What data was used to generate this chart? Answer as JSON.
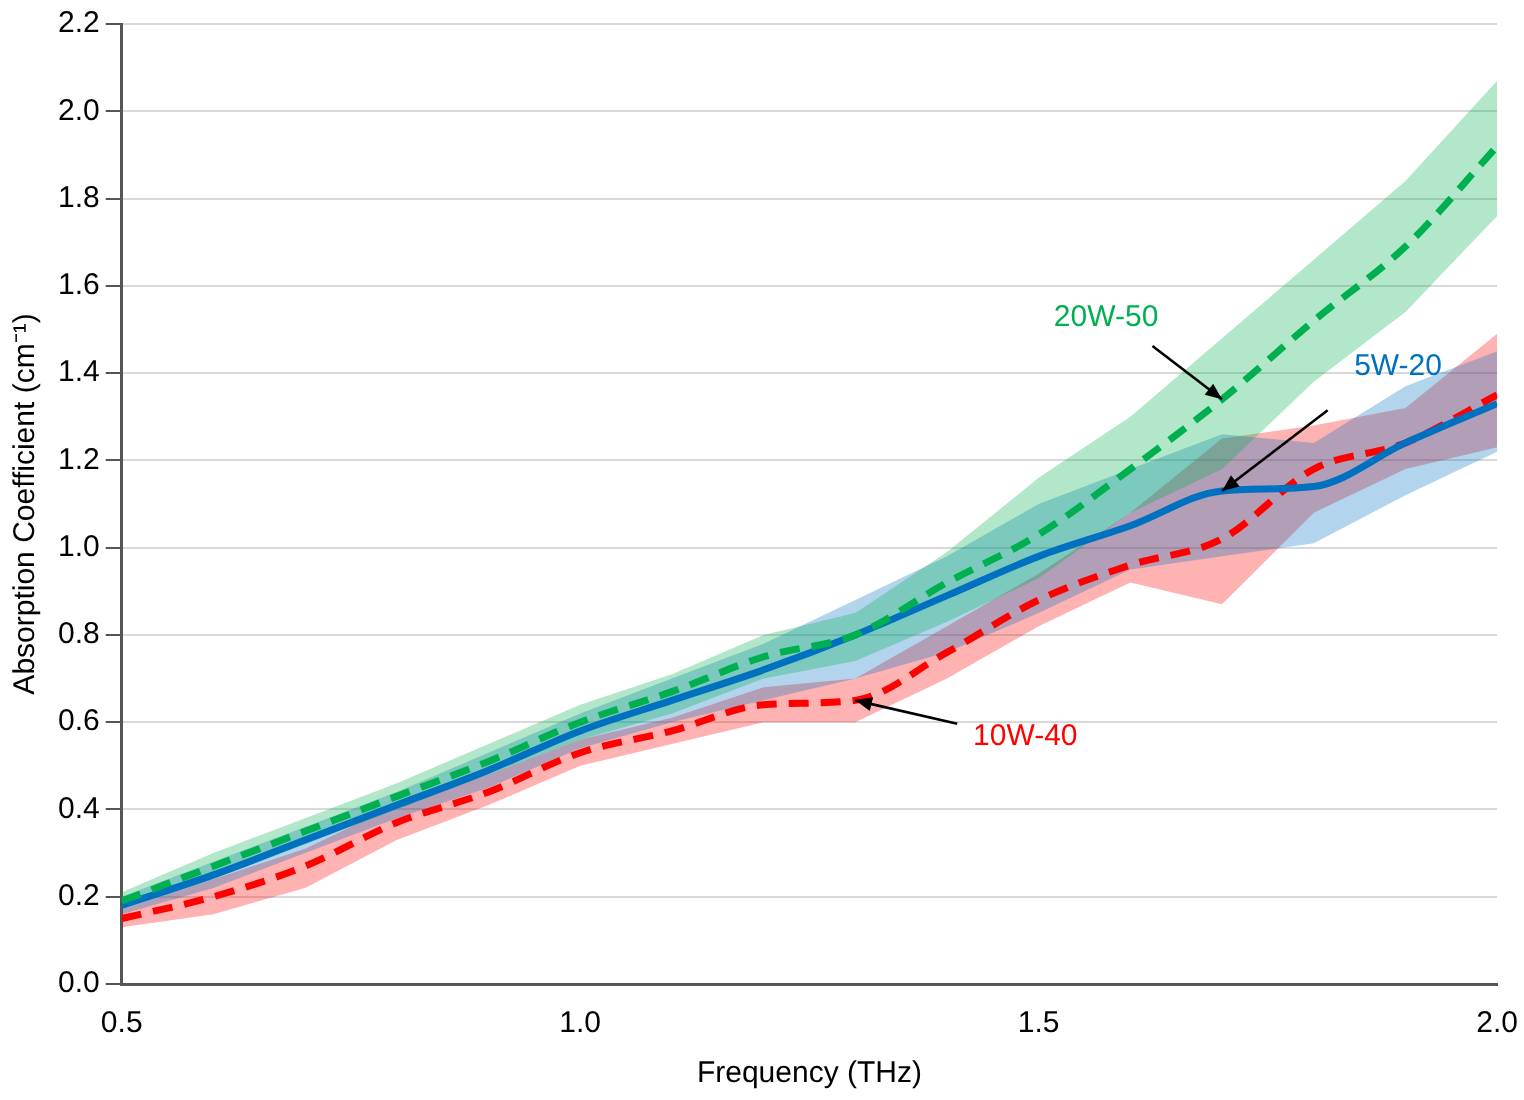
{
  "chart_data": {
    "type": "line",
    "xlabel": "Frequency (THz)",
    "ylabel": "Absorption Coefficient (cm⁻¹)",
    "x": [
      0.5,
      0.6,
      0.7,
      0.8,
      0.9,
      1.0,
      1.1,
      1.2,
      1.3,
      1.4,
      1.5,
      1.6,
      1.7,
      1.8,
      1.9,
      2.0
    ],
    "series": [
      {
        "name": "20W-50",
        "color": "#00b050",
        "line_style": "dashed",
        "values": [
          0.19,
          0.27,
          0.35,
          0.43,
          0.51,
          0.6,
          0.67,
          0.75,
          0.8,
          0.92,
          1.03,
          1.18,
          1.34,
          1.52,
          1.69,
          1.92
        ],
        "lower": [
          0.17,
          0.24,
          0.32,
          0.4,
          0.48,
          0.56,
          0.62,
          0.7,
          0.74,
          0.83,
          0.93,
          1.08,
          1.18,
          1.38,
          1.54,
          1.76
        ],
        "upper": [
          0.21,
          0.3,
          0.38,
          0.46,
          0.55,
          0.64,
          0.71,
          0.8,
          0.85,
          0.99,
          1.16,
          1.3,
          1.48,
          1.66,
          1.84,
          2.07
        ]
      },
      {
        "name": "5W-20",
        "color": "#0070c0",
        "line_style": "solid",
        "values": [
          0.18,
          0.25,
          0.33,
          0.41,
          0.49,
          0.58,
          0.65,
          0.72,
          0.8,
          0.89,
          0.98,
          1.05,
          1.13,
          1.14,
          1.24,
          1.33
        ],
        "lower": [
          0.16,
          0.22,
          0.3,
          0.38,
          0.45,
          0.54,
          0.6,
          0.65,
          0.7,
          0.76,
          0.85,
          0.95,
          0.98,
          1.01,
          1.12,
          1.22
        ],
        "upper": [
          0.2,
          0.28,
          0.36,
          0.44,
          0.53,
          0.62,
          0.7,
          0.78,
          0.88,
          0.98,
          1.1,
          1.18,
          1.26,
          1.24,
          1.37,
          1.45
        ]
      },
      {
        "name": "10W-40",
        "color": "#ff0000",
        "line_style": "dashed",
        "values": [
          0.15,
          0.2,
          0.27,
          0.37,
          0.44,
          0.53,
          0.58,
          0.64,
          0.65,
          0.76,
          0.88,
          0.96,
          1.02,
          1.18,
          1.24,
          1.35
        ],
        "lower": [
          0.13,
          0.16,
          0.22,
          0.33,
          0.41,
          0.5,
          0.55,
          0.6,
          0.6,
          0.7,
          0.82,
          0.92,
          0.87,
          1.08,
          1.18,
          1.23
        ],
        "upper": [
          0.17,
          0.24,
          0.31,
          0.41,
          0.48,
          0.56,
          0.61,
          0.68,
          0.7,
          0.82,
          0.94,
          1.08,
          1.25,
          1.28,
          1.32,
          1.49
        ]
      }
    ],
    "xlim": [
      0.5,
      2.0
    ],
    "xticks": [
      {
        "value": 0.5,
        "label": "0.5"
      },
      {
        "value": 1.0,
        "label": "1.0"
      },
      {
        "value": 1.5,
        "label": "1.5"
      },
      {
        "value": 2.0,
        "label": "2.0"
      }
    ],
    "ylim": [
      0,
      2.2
    ],
    "yticks": [
      {
        "value": 0,
        "label": "0.0"
      },
      {
        "value": 0.2,
        "label": "0.2"
      },
      {
        "value": 0.4,
        "label": "0.4"
      },
      {
        "value": 0.6,
        "label": "0.6"
      },
      {
        "value": 0.8,
        "label": "0.8"
      },
      {
        "value": 1.0,
        "label": "1.0"
      },
      {
        "value": 1.2,
        "label": "1.2"
      },
      {
        "value": 1.4,
        "label": "1.4"
      },
      {
        "value": 1.6,
        "label": "1.6"
      },
      {
        "value": 1.8,
        "label": "1.8"
      },
      {
        "value": 2.0,
        "label": "2.0"
      },
      {
        "value": 2.2,
        "label": "2.2"
      }
    ],
    "grid": "y",
    "legend": false,
    "marker": "none"
  }
}
